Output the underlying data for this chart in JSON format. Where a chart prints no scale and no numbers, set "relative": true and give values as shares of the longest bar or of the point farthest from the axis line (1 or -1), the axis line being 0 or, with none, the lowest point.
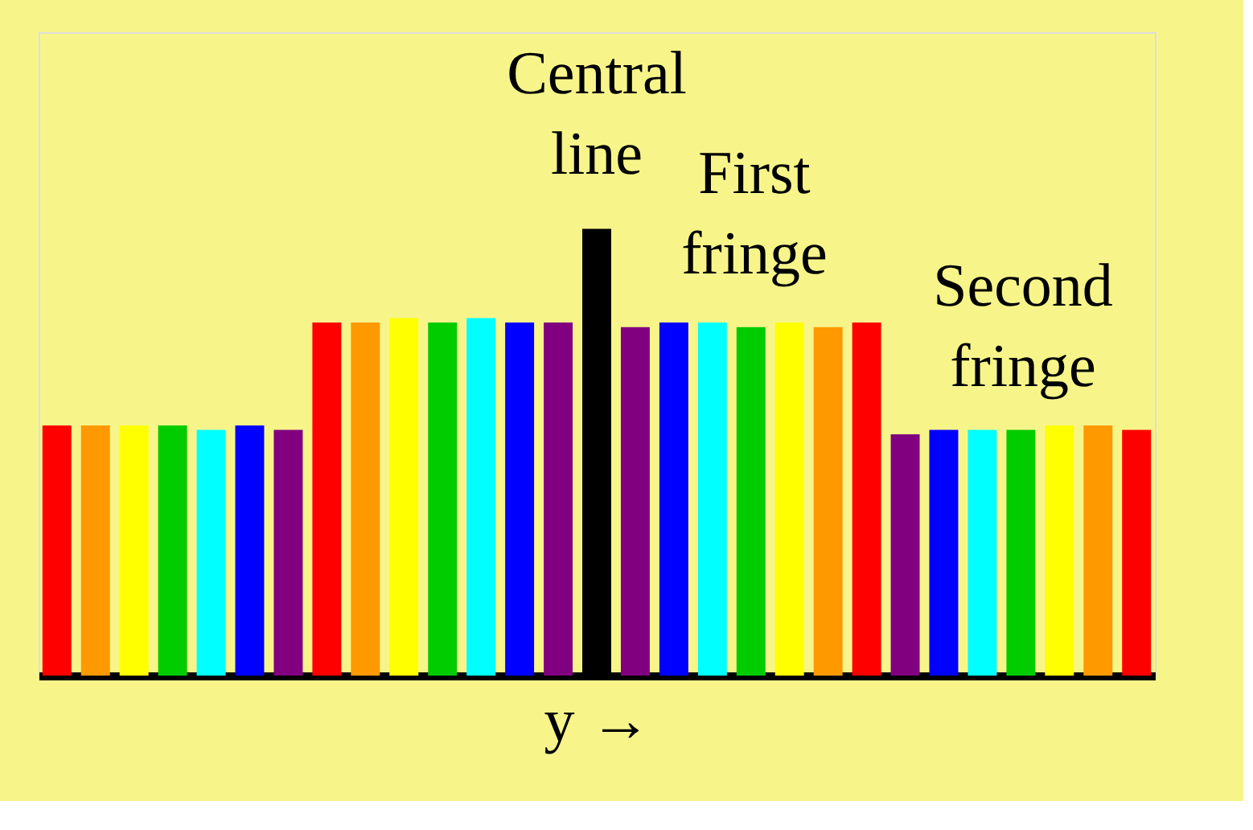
{
  "chart_data": {
    "type": "bar",
    "relative": true,
    "xlabel": "y →",
    "categories": [
      null,
      null,
      null,
      null,
      null,
      null,
      null,
      null,
      null,
      null,
      null,
      null,
      null,
      null,
      null,
      null,
      null,
      null,
      null,
      null,
      null,
      null,
      null,
      null,
      null,
      null,
      null,
      null,
      null
    ],
    "values": [
      0.56,
      0.56,
      0.56,
      0.56,
      0.55,
      0.56,
      0.55,
      0.79,
      0.79,
      0.8,
      0.79,
      0.8,
      0.79,
      0.79,
      1,
      0.78,
      0.79,
      0.79,
      0.78,
      0.79,
      0.78,
      0.79,
      0.54,
      0.55,
      0.55,
      0.55,
      0.56,
      0.56,
      0.55
    ],
    "colors": [
      "#ff0000",
      "#ff9900",
      "#ffff00",
      "#00cc00",
      "#00ffff",
      "#0000ff",
      "#800080",
      "#ff0000",
      "#ff9900",
      "#ffff00",
      "#00cc00",
      "#00ffff",
      "#0000ff",
      "#800080",
      "#000000",
      "#800080",
      "#0000ff",
      "#00ffff",
      "#00cc00",
      "#ffff00",
      "#ff9900",
      "#ff0000",
      "#800080",
      "#0000ff",
      "#00ffff",
      "#00cc00",
      "#ffff00",
      "#ff9900",
      "#ff0000"
    ],
    "annotations": [
      "Central line",
      "First fringe",
      "Second fringe"
    ]
  }
}
